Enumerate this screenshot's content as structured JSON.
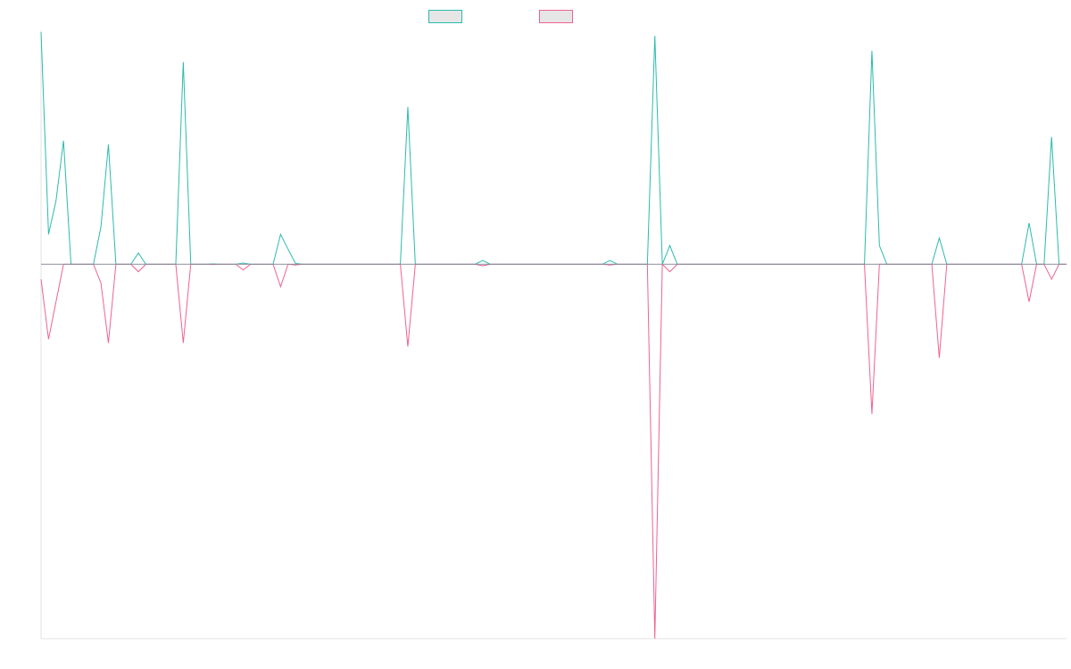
{
  "colors": {
    "series_a": "#2bbbad",
    "series_b": "#f06292",
    "axis": "#e3e3e3",
    "zero_line": "#8a8fa0"
  },
  "chart_data": {
    "type": "line",
    "title": "",
    "xlabel": "",
    "ylabel": "",
    "grid": false,
    "legend_position": "top-center",
    "ylim": [
      -1,
      0.62
    ],
    "x": [
      0,
      1,
      2,
      3,
      4,
      5,
      6,
      7,
      8,
      9,
      10,
      11,
      12,
      13,
      14,
      15,
      16,
      17,
      18,
      19,
      20,
      21,
      22,
      23,
      24,
      25,
      26,
      27,
      28,
      29,
      30,
      31,
      32,
      33,
      34,
      35,
      36,
      37,
      38,
      39,
      40,
      41,
      42,
      43,
      44,
      45,
      46,
      47,
      48,
      49,
      50,
      51,
      52,
      53,
      54,
      55,
      56,
      57,
      58,
      59,
      60,
      61,
      62,
      63,
      64,
      65,
      66,
      67,
      68,
      69,
      70,
      71,
      72,
      73,
      74,
      75,
      76,
      77,
      78,
      79,
      80,
      81,
      82,
      83,
      84,
      85,
      86,
      87,
      88,
      89,
      90,
      91,
      92,
      93,
      94,
      95,
      96,
      97,
      98,
      99,
      100,
      101,
      102,
      103,
      104,
      105,
      106,
      107,
      108,
      109,
      110,
      111,
      112,
      113,
      114,
      115,
      116,
      117,
      118,
      119,
      120,
      121,
      122,
      123,
      124,
      125,
      126,
      127,
      128,
      129,
      130,
      131,
      132,
      133,
      134,
      135,
      136,
      137
    ],
    "series": [
      {
        "name": "",
        "color": "#2bbbad",
        "values": [
          0.62,
          0.08,
          0.17,
          0.33,
          0,
          0,
          0,
          0,
          0.1,
          0.32,
          0,
          0,
          0,
          0.03,
          0,
          0,
          0,
          0,
          0,
          0.54,
          0,
          0,
          0,
          0.001,
          0,
          0,
          0,
          0.003,
          0,
          0,
          0,
          0,
          0.08,
          0.04,
          0.002,
          0,
          0,
          0,
          0,
          0,
          0,
          0,
          0,
          0,
          0,
          0,
          0,
          0,
          0,
          0.42,
          0,
          0,
          0,
          0,
          0,
          0,
          0,
          0,
          0,
          0.01,
          0,
          0,
          0,
          0,
          0,
          0,
          0,
          0,
          0,
          0,
          0,
          0,
          0,
          0,
          0,
          0,
          0.01,
          0,
          0,
          0,
          0,
          0,
          0.61,
          0,
          0.05,
          0,
          0,
          0,
          0,
          0,
          0,
          0,
          0,
          0,
          0,
          0,
          0,
          0,
          0,
          0,
          0,
          0,
          0,
          0,
          0,
          0,
          0,
          0,
          0,
          0,
          0,
          0.57,
          0.05,
          0,
          0,
          0,
          0,
          0,
          0,
          0,
          0.07,
          0,
          0,
          0,
          0,
          0,
          0,
          0,
          0,
          0,
          0,
          0,
          0.11,
          0,
          0,
          0.34,
          0,
          0
        ]
      },
      {
        "name": "",
        "color": "#f06292",
        "values": [
          -0.04,
          -0.2,
          -0.1,
          0,
          0,
          0,
          0,
          0,
          -0.05,
          -0.21,
          0,
          0,
          0,
          -0.02,
          0,
          0,
          0,
          0,
          0,
          -0.21,
          0,
          0,
          0,
          -0.001,
          0,
          0,
          0,
          -0.015,
          0,
          0,
          0,
          0,
          -0.06,
          0,
          -0.002,
          0,
          0,
          0,
          0,
          0,
          0,
          0,
          0,
          0,
          0,
          0,
          0,
          0,
          0,
          -0.22,
          0,
          0,
          0,
          0,
          0,
          0,
          0,
          0,
          0,
          -0.004,
          0,
          0,
          0,
          0,
          0,
          0,
          0,
          0,
          0,
          0,
          0,
          0,
          0,
          0,
          0,
          0,
          -0.002,
          0,
          0,
          0,
          0,
          0,
          -1,
          0,
          -0.02,
          0,
          0,
          0,
          0,
          0,
          0,
          0,
          0,
          0,
          0,
          0,
          0,
          0,
          0,
          0,
          0,
          0,
          0,
          0,
          0,
          0,
          0,
          0,
          0,
          0,
          0,
          -0.4,
          0,
          0,
          0,
          0,
          0,
          0,
          0,
          0,
          -0.25,
          0,
          0,
          0,
          0,
          0,
          0,
          0,
          0,
          0,
          0,
          0,
          -0.1,
          0,
          0,
          -0.04,
          0,
          0
        ]
      }
    ]
  }
}
